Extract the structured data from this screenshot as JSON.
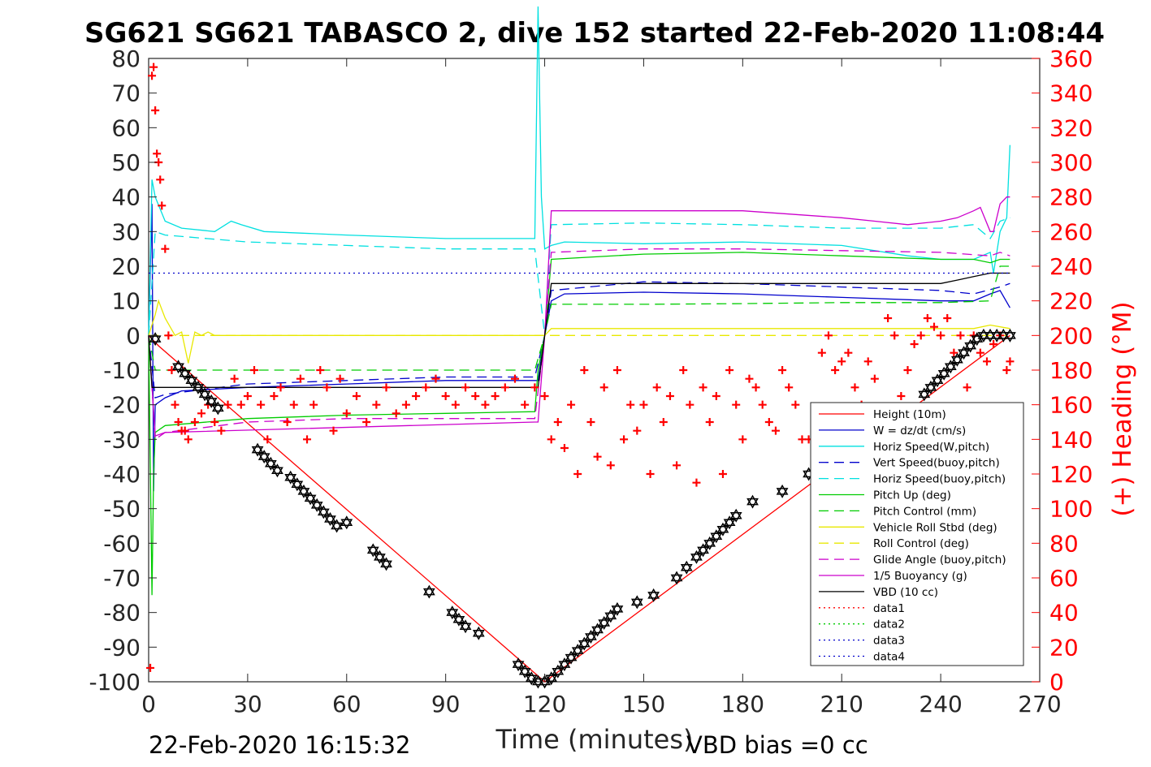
{
  "chart_data": {
    "type": "line",
    "title": "SG621 SG621 TABASCO 2, dive 152 started 22-Feb-2020 11:08:44",
    "xlabel": "Time (minutes)",
    "ylabel_right": "(+) Heading (°M)",
    "footer_left": "22-Feb-2020 16:15:32",
    "footer_right": "VBD bias =0 cc",
    "xlim": [
      0,
      270
    ],
    "ylim": [
      -100,
      80
    ],
    "ylim_right": [
      0,
      360
    ],
    "x_ticks": [
      "0",
      "30",
      "60",
      "90",
      "120",
      "150",
      "180",
      "210",
      "240",
      "270"
    ],
    "y_ticks": [
      "-100",
      "-90",
      "-80",
      "-70",
      "-60",
      "-50",
      "-40",
      "-30",
      "-20",
      "-10",
      "0",
      "10",
      "20",
      "30",
      "40",
      "50",
      "60",
      "70",
      "80"
    ],
    "y_ticks_right": [
      "0",
      "20",
      "40",
      "60",
      "80",
      "100",
      "120",
      "140",
      "160",
      "180",
      "200",
      "220",
      "240",
      "260",
      "280",
      "300",
      "320",
      "340",
      "360"
    ],
    "legend_position": "bottom-right",
    "colors": {
      "height": "#ff0000",
      "w": "#0000cc",
      "horiz_w": "#00e0e0",
      "vert_buoy": "#0000cc",
      "horiz_buoy": "#00e0e0",
      "pitch_up": "#00cc00",
      "pitch_control": "#00cc00",
      "roll": "#e8e800",
      "roll_control": "#e8e800",
      "glide": "#cc00cc",
      "buoyancy": "#cc00cc",
      "vbd": "#000000",
      "heading": "#ff0000"
    },
    "series": [
      {
        "name": "Height (10m)",
        "key": "height",
        "style": "solid",
        "x": [
          0,
          3,
          120,
          261
        ],
        "y": [
          0,
          -3,
          -100,
          0
        ]
      },
      {
        "name": "W = dz/dt (cm/s)",
        "key": "w",
        "style": "solid",
        "x": [
          0,
          1,
          1.5,
          2,
          5,
          10,
          30,
          60,
          90,
          117,
          118,
          120,
          122,
          126,
          150,
          180,
          210,
          240,
          250,
          255,
          258,
          261
        ],
        "y": [
          0,
          38,
          -45,
          -20,
          -18,
          -16,
          -15,
          -14,
          -13,
          -13,
          -13,
          0,
          10,
          12,
          12.5,
          12,
          11,
          10,
          10,
          12,
          13,
          8
        ]
      },
      {
        "name": "Horiz Speed(W,pitch)",
        "key": "horiz_w",
        "style": "solid",
        "x": [
          0,
          1,
          2,
          5,
          10,
          20,
          25,
          28,
          35,
          60,
          90,
          117,
          118,
          119,
          120,
          122,
          126,
          150,
          180,
          210,
          230,
          240,
          250,
          255,
          256,
          258,
          260,
          261
        ],
        "y": [
          0,
          45,
          40,
          33,
          31,
          30,
          33,
          32,
          30,
          29,
          28,
          28,
          95,
          40,
          25,
          26,
          27,
          26.5,
          27,
          26,
          23,
          22,
          22,
          24,
          18,
          30,
          34,
          55
        ]
      },
      {
        "name": "Vert Speed(buoy,pitch)",
        "key": "vert_buoy",
        "style": "dash",
        "x": [
          0,
          2,
          5,
          30,
          60,
          90,
          117,
          120,
          122,
          150,
          180,
          210,
          240,
          250,
          258,
          261
        ],
        "y": [
          0,
          -18,
          -17,
          -14,
          -13,
          -12,
          -12,
          0,
          13,
          15.5,
          15,
          14,
          13,
          12,
          14,
          15
        ]
      },
      {
        "name": "Horiz Speed(buoy,pitch)",
        "key": "horiz_buoy",
        "style": "dash",
        "x": [
          0,
          2,
          5,
          30,
          60,
          90,
          117,
          120,
          122,
          150,
          180,
          210,
          240,
          250,
          255,
          258,
          261
        ],
        "y": [
          0,
          30,
          29,
          27,
          26,
          25,
          25,
          0,
          32,
          32.5,
          32,
          31,
          31,
          32,
          28,
          33,
          34
        ]
      },
      {
        "name": "Pitch Up (deg)",
        "key": "pitch_up",
        "style": "solid",
        "x": [
          0,
          1,
          1.5,
          2,
          5,
          30,
          60,
          90,
          117,
          118,
          120,
          122,
          150,
          180,
          210,
          240,
          250,
          255,
          258,
          261
        ],
        "y": [
          0,
          -75,
          -40,
          -28,
          -26,
          -24,
          -23,
          -22.5,
          -22,
          -10,
          0,
          22,
          23.5,
          24,
          23,
          22,
          22,
          21,
          22,
          22
        ]
      },
      {
        "name": "Pitch Control (mm)",
        "key": "pitch_control",
        "style": "dash",
        "x": [
          0,
          2,
          60,
          117,
          120,
          122,
          150,
          180,
          210,
          240,
          255,
          258,
          261
        ],
        "y": [
          0,
          -10,
          -10,
          -10,
          0,
          9,
          9,
          9.2,
          9.5,
          9.5,
          10,
          20,
          20
        ]
      },
      {
        "name": "Vehicle Roll Stbd (deg)",
        "key": "roll",
        "style": "solid",
        "x": [
          0,
          2,
          3,
          5,
          8,
          10,
          12,
          14,
          16,
          18,
          20,
          30,
          60,
          90,
          117,
          118,
          120,
          122,
          150,
          180,
          210,
          240,
          250,
          255,
          261
        ],
        "y": [
          0,
          6,
          10,
          5,
          0,
          1,
          -8,
          1,
          0,
          1,
          0,
          0,
          0,
          0,
          0,
          0,
          0,
          2,
          2,
          2,
          2,
          2,
          2,
          3,
          2
        ]
      },
      {
        "name": "Roll Control (deg)",
        "key": "roll_control",
        "style": "dash",
        "x": [
          0,
          2,
          117,
          120,
          122,
          261
        ],
        "y": [
          0,
          0,
          0,
          0,
          0,
          0
        ]
      },
      {
        "name": "Glide Angle (buoy,pitch)",
        "key": "glide",
        "style": "dash",
        "x": [
          0,
          2,
          5,
          30,
          60,
          90,
          117,
          120,
          122,
          150,
          180,
          210,
          240,
          255,
          258,
          261
        ],
        "y": [
          0,
          -30,
          -28,
          -25,
          -24,
          -24,
          -24,
          0,
          24,
          25,
          25,
          24.5,
          24,
          23,
          24,
          23
        ]
      },
      {
        "name": "1/5 Buoyancy (g)",
        "key": "buoyancy",
        "style": "solid",
        "x": [
          0,
          2,
          5,
          117,
          118,
          120,
          122,
          150,
          180,
          210,
          220,
          230,
          240,
          245,
          250,
          252,
          255,
          256,
          258,
          260,
          261
        ],
        "y": [
          0,
          -29,
          -28,
          -25,
          -25,
          0,
          36,
          36,
          36,
          34,
          33,
          32,
          33,
          34,
          36,
          37,
          30,
          30,
          38,
          40,
          40
        ]
      },
      {
        "name": "VBD (10 cc)",
        "key": "vbd",
        "style": "solid",
        "x": [
          0,
          1,
          2,
          117,
          118,
          120,
          122,
          150,
          180,
          210,
          240,
          245,
          250,
          255,
          258,
          261
        ],
        "y": [
          0,
          -15,
          -15,
          -15,
          -15,
          0,
          15,
          15,
          15,
          15,
          15,
          16,
          17,
          18,
          18,
          18
        ]
      },
      {
        "name": "data1",
        "key": "height",
        "style": "dot",
        "x": [],
        "y": []
      },
      {
        "name": "data2",
        "key": "pitch_up",
        "style": "dot",
        "x": [],
        "y": []
      },
      {
        "name": "data3",
        "key": "vert_buoy",
        "style": "dot",
        "x": [],
        "y": []
      },
      {
        "name": "data4",
        "key": "w",
        "style": "dot",
        "x": [
          0,
          261
        ],
        "y": [
          18,
          18
        ]
      }
    ],
    "depth_markers": {
      "marker": "hexagram",
      "x": [
        2,
        9,
        11,
        13,
        15,
        17,
        19,
        21,
        33,
        35,
        37,
        39,
        43,
        45,
        47,
        49,
        51,
        53,
        55,
        57,
        60,
        68,
        70,
        72,
        85,
        92,
        94,
        96,
        100,
        112,
        114,
        116,
        118,
        120,
        122,
        124,
        126,
        128,
        130,
        132,
        134,
        136,
        138,
        140,
        142,
        148,
        153,
        160,
        163,
        166,
        168,
        170,
        172,
        174,
        176,
        178,
        183,
        192,
        200,
        235,
        237,
        239,
        241,
        243,
        245,
        247,
        249,
        251,
        253,
        255,
        257,
        259,
        261
      ],
      "y": [
        -1,
        -9,
        -11,
        -13,
        -15,
        -17,
        -19,
        -21,
        -33,
        -35,
        -37,
        -39,
        -41,
        -43,
        -45,
        -47,
        -49,
        -51,
        -53,
        -55,
        -54,
        -62,
        -64,
        -66,
        -74,
        -80,
        -82,
        -84,
        -86,
        -95,
        -97,
        -99,
        -100,
        -100,
        -99,
        -97,
        -95,
        -93,
        -91,
        -89,
        -87,
        -85,
        -83,
        -81,
        -79,
        -77,
        -75,
        -70,
        -67,
        -64,
        -62,
        -60,
        -58,
        -56,
        -54,
        -52,
        -48,
        -45,
        -40,
        -17,
        -15,
        -13,
        -11,
        -9,
        -7,
        -5,
        -3,
        -1,
        0,
        0,
        0,
        0,
        0
      ]
    },
    "heading": {
      "marker": "plus",
      "axis": "right",
      "x": [
        0.5,
        1,
        1.5,
        2,
        2.5,
        3,
        3.5,
        4,
        5,
        6,
        7,
        8,
        9,
        10,
        11,
        12,
        14,
        16,
        18,
        20,
        22,
        24,
        26,
        28,
        30,
        32,
        34,
        36,
        38,
        40,
        42,
        44,
        46,
        48,
        50,
        52,
        54,
        56,
        58,
        60,
        63,
        66,
        69,
        72,
        75,
        78,
        81,
        84,
        87,
        90,
        93,
        96,
        99,
        102,
        105,
        108,
        111,
        114,
        117,
        120,
        122,
        124,
        126,
        128,
        130,
        132,
        134,
        136,
        138,
        140,
        142,
        144,
        146,
        148,
        150,
        152,
        154,
        156,
        158,
        160,
        162,
        164,
        166,
        168,
        170,
        172,
        174,
        176,
        178,
        180,
        182,
        184,
        186,
        188,
        190,
        192,
        194,
        196,
        198,
        200,
        202,
        204,
        206,
        208,
        210,
        212,
        214,
        216,
        218,
        220,
        222,
        224,
        226,
        228,
        230,
        232,
        234,
        236,
        238,
        240,
        242,
        244,
        246,
        248,
        250,
        252,
        254,
        256,
        258,
        260,
        261
      ],
      "y": [
        8,
        350,
        355,
        330,
        305,
        300,
        290,
        275,
        250,
        200,
        180,
        160,
        150,
        145,
        145,
        140,
        150,
        155,
        160,
        150,
        145,
        160,
        175,
        160,
        165,
        180,
        160,
        140,
        165,
        170,
        150,
        160,
        175,
        140,
        160,
        180,
        170,
        145,
        175,
        155,
        165,
        150,
        160,
        170,
        155,
        160,
        165,
        170,
        175,
        165,
        160,
        170,
        165,
        160,
        165,
        170,
        175,
        160,
        170,
        165,
        140,
        150,
        135,
        160,
        120,
        180,
        150,
        130,
        170,
        125,
        180,
        140,
        160,
        145,
        160,
        120,
        170,
        150,
        165,
        125,
        180,
        160,
        115,
        170,
        150,
        165,
        120,
        180,
        160,
        140,
        175,
        170,
        160,
        150,
        145,
        180,
        170,
        160,
        140,
        140,
        150,
        190,
        200,
        180,
        185,
        190,
        170,
        160,
        185,
        175,
        150,
        210,
        200,
        165,
        180,
        195,
        200,
        210,
        205,
        200,
        210,
        190,
        200,
        170,
        200,
        190,
        185,
        195,
        200,
        180,
        185
      ]
    }
  }
}
